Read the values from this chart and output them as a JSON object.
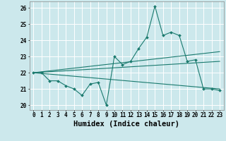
{
  "xlabel": "Humidex (Indice chaleur)",
  "ylabel": "",
  "bg_color": "#cce8ec",
  "grid_color": "#ffffff",
  "line_color": "#1a7a6e",
  "xlim": [
    -0.5,
    23.5
  ],
  "ylim": [
    19.7,
    26.4
  ],
  "yticks": [
    20,
    21,
    22,
    23,
    24,
    25,
    26
  ],
  "xticks": [
    0,
    1,
    2,
    3,
    4,
    5,
    6,
    7,
    8,
    9,
    10,
    11,
    12,
    13,
    14,
    15,
    16,
    17,
    18,
    19,
    20,
    21,
    22,
    23
  ],
  "main_line_x": [
    0,
    1,
    2,
    3,
    4,
    5,
    6,
    7,
    8,
    9,
    10,
    11,
    12,
    13,
    14,
    15,
    16,
    17,
    18,
    19,
    20,
    21,
    22,
    23
  ],
  "main_line_y": [
    22.0,
    22.0,
    21.5,
    21.5,
    21.2,
    21.0,
    20.6,
    21.3,
    21.4,
    20.0,
    23.0,
    22.5,
    22.7,
    23.5,
    24.2,
    26.1,
    24.3,
    24.5,
    24.3,
    22.7,
    22.8,
    21.0,
    21.0,
    20.9
  ],
  "trend1_x": [
    0,
    23
  ],
  "trend1_y": [
    22.0,
    23.3
  ],
  "trend2_x": [
    0,
    23
  ],
  "trend2_y": [
    22.0,
    22.7
  ],
  "trend3_x": [
    0,
    23
  ],
  "trend3_y": [
    22.0,
    21.0
  ],
  "fontsize_ticks": 5.5,
  "fontsize_label": 7.5
}
